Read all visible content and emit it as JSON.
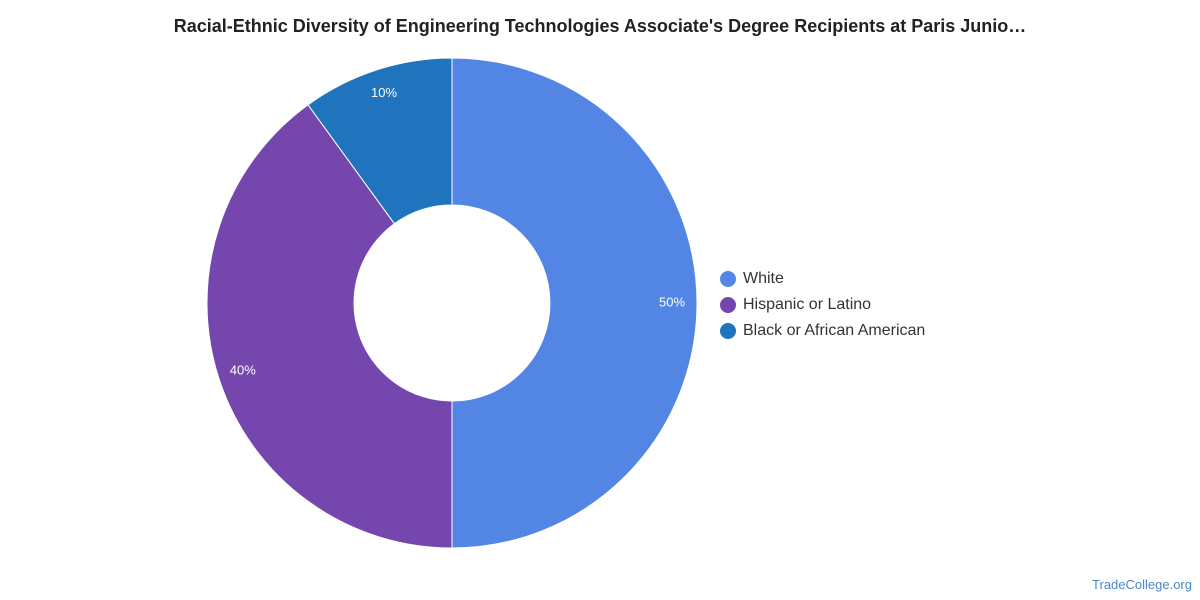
{
  "chart_data": {
    "type": "pie",
    "title": "Racial-Ethnic Diversity of Engineering Technologies Associate's Degree Recipients at Paris Junio…",
    "categories": [
      "White",
      "Hispanic or Latino",
      "Black or African American"
    ],
    "values": [
      50,
      40,
      10
    ],
    "data_labels": [
      "50%",
      "40%",
      "10%"
    ],
    "colors": [
      "#5386e4",
      "#7446ae",
      "#1f74bd"
    ],
    "legend_position": "right",
    "donut": true
  },
  "watermark": "TradeCollege.org"
}
